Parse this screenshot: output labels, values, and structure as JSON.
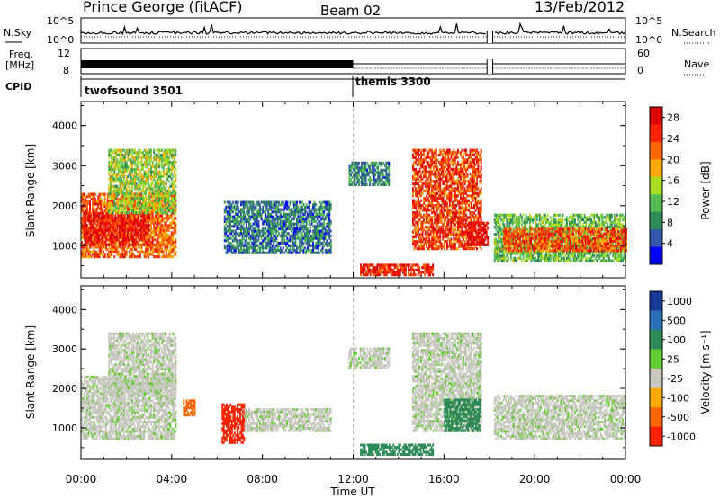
{
  "header": {
    "station": "Prince George (fitACF)",
    "beam": "Beam 02",
    "date": "13/Feb/2012"
  },
  "top_panels": {
    "nsky_label": "N.Sky",
    "nsky_ticks": [
      "10^5",
      "10^0"
    ],
    "nsearch_label": "N.Search",
    "nsearch_ticks": [
      "10^5",
      "10^0"
    ],
    "freq_label_1": "Freq.",
    "freq_label_2": "[MHz]",
    "freq_ticks": [
      "12",
      "8"
    ],
    "nave_label": "Nave",
    "nave_ticks": [
      "60",
      "0"
    ],
    "cpid_label": "CPID",
    "cpid_segments": [
      {
        "name": "twofsound 3501",
        "start_hour": 0,
        "end_hour": 12
      },
      {
        "name": "themis 3300",
        "start_hour": 12,
        "end_hour": 24
      }
    ]
  },
  "colors": {
    "power_scale": [
      "#0000ff",
      "#3355aa",
      "#2e8b57",
      "#55bb55",
      "#aadd22",
      "#ffaa00",
      "#ff6600",
      "#ff2200",
      "#dd0000"
    ],
    "velocity_scale": [
      "#1a3a9a",
      "#2d6fb5",
      "#2e8b57",
      "#66cc33",
      "#c8c8c0",
      "#ffaa00",
      "#ff6600",
      "#ff2200"
    ]
  },
  "chart_data": [
    {
      "type": "heatmap",
      "title": "",
      "xlabel": "Time UT",
      "ylabel": "Slant Range [km]",
      "xlim": [
        0,
        24
      ],
      "ylim": [
        200,
        4600
      ],
      "x_ticks": [
        "00:00",
        "04:00",
        "08:00",
        "12:00",
        "16:00",
        "20:00",
        "00:00"
      ],
      "y_ticks": [
        "1000",
        "2000",
        "3000",
        "4000"
      ],
      "colorbar_label": "Power [dB]",
      "colorbar_ticks": [
        "4",
        "8",
        "12",
        "16",
        "20",
        "24",
        "28"
      ],
      "colorbar_range": [
        0,
        30
      ],
      "regions": [
        {
          "t0": 0.0,
          "t1": 4.2,
          "r0": 700,
          "r1": 2300,
          "value": 22
        },
        {
          "t0": 0.1,
          "t1": 3.0,
          "r0": 1000,
          "r1": 1800,
          "value": 27
        },
        {
          "t0": 1.2,
          "t1": 4.2,
          "r0": 1800,
          "r1": 3400,
          "value": 14
        },
        {
          "t0": 6.3,
          "t1": 11.0,
          "r0": 800,
          "r1": 2100,
          "value": 7
        },
        {
          "t0": 11.8,
          "t1": 13.6,
          "r0": 2500,
          "r1": 3100,
          "value": 8
        },
        {
          "t0": 12.3,
          "t1": 15.5,
          "r0": 250,
          "r1": 500,
          "value": 26
        },
        {
          "t0": 14.6,
          "t1": 17.6,
          "r0": 900,
          "r1": 3400,
          "value": 24
        },
        {
          "t0": 17.0,
          "t1": 17.9,
          "r0": 1000,
          "r1": 1600,
          "value": 28
        },
        {
          "t0": 18.2,
          "t1": 24.0,
          "r0": 600,
          "r1": 1800,
          "value": 12
        },
        {
          "t0": 18.6,
          "t1": 24.0,
          "r0": 850,
          "r1": 1400,
          "value": 23
        }
      ]
    },
    {
      "type": "heatmap",
      "title": "",
      "xlabel": "Time UT",
      "ylabel": "Slant Range [km]",
      "xlim": [
        0,
        24
      ],
      "ylim": [
        200,
        4600
      ],
      "x_ticks": [
        "00:00",
        "04:00",
        "08:00",
        "12:00",
        "16:00",
        "20:00",
        "00:00"
      ],
      "y_ticks": [
        "1000",
        "2000",
        "3000",
        "4000"
      ],
      "colorbar_label": "Velocity [m s⁻¹]",
      "colorbar_ticks": [
        "1000",
        "500",
        "100",
        "25",
        "-25",
        "-100",
        "-500",
        "-1000"
      ],
      "colorbar_range": [
        -1000,
        1000
      ],
      "regions": [
        {
          "t0": 0.0,
          "t1": 4.2,
          "r0": 700,
          "r1": 2300,
          "value": 0
        },
        {
          "t0": 1.2,
          "t1": 4.2,
          "r0": 1800,
          "r1": 3400,
          "value": 0
        },
        {
          "t0": 4.5,
          "t1": 5.0,
          "r0": 1300,
          "r1": 1700,
          "value": -300
        },
        {
          "t0": 6.2,
          "t1": 7.2,
          "r0": 600,
          "r1": 1600,
          "value": -600
        },
        {
          "t0": 7.2,
          "t1": 11.0,
          "r0": 900,
          "r1": 1500,
          "value": 0
        },
        {
          "t0": 11.8,
          "t1": 13.6,
          "r0": 2500,
          "r1": 3000,
          "value": 0
        },
        {
          "t0": 12.3,
          "t1": 15.5,
          "r0": 300,
          "r1": 600,
          "value": 80
        },
        {
          "t0": 14.6,
          "t1": 17.6,
          "r0": 900,
          "r1": 3400,
          "value": 0
        },
        {
          "t0": 16.0,
          "t1": 17.6,
          "r0": 900,
          "r1": 1700,
          "value": 80
        },
        {
          "t0": 18.2,
          "t1": 24.0,
          "r0": 700,
          "r1": 1800,
          "value": 0
        }
      ]
    }
  ]
}
